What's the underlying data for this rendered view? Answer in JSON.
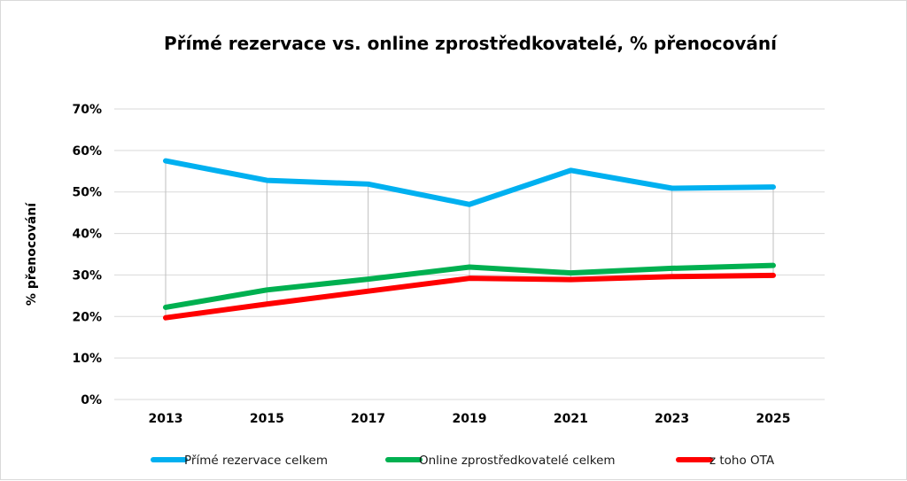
{
  "chart_data": {
    "type": "line",
    "title": "Přímé rezervace vs. online zprostředkovatelé, % přenocování",
    "xlabel": "",
    "ylabel": "% přenocování",
    "categories": [
      "2013",
      "2015",
      "2017",
      "2019",
      "2021",
      "2023",
      "2025"
    ],
    "y_ticks": [
      "0%",
      "10%",
      "20%",
      "30%",
      "40%",
      "50%",
      "60%",
      "70%"
    ],
    "ylim": [
      0,
      70
    ],
    "grid": "horizontal",
    "drop_lines": true,
    "legend_position": "bottom",
    "series": [
      {
        "name": "Přímé rezervace celkem",
        "color": "#00B0F0",
        "values": [
          57.5,
          52.8,
          51.9,
          47.0,
          55.2,
          50.9,
          51.2
        ]
      },
      {
        "name": "Online zprostředkovatelé celkem",
        "color": "#00B050",
        "values": [
          22.2,
          26.4,
          29.0,
          31.9,
          30.5,
          31.6,
          32.3
        ]
      },
      {
        "name": "z toho OTA",
        "color": "#FF0000",
        "values": [
          19.7,
          23.0,
          26.1,
          29.2,
          28.9,
          29.6,
          29.9
        ]
      }
    ]
  }
}
